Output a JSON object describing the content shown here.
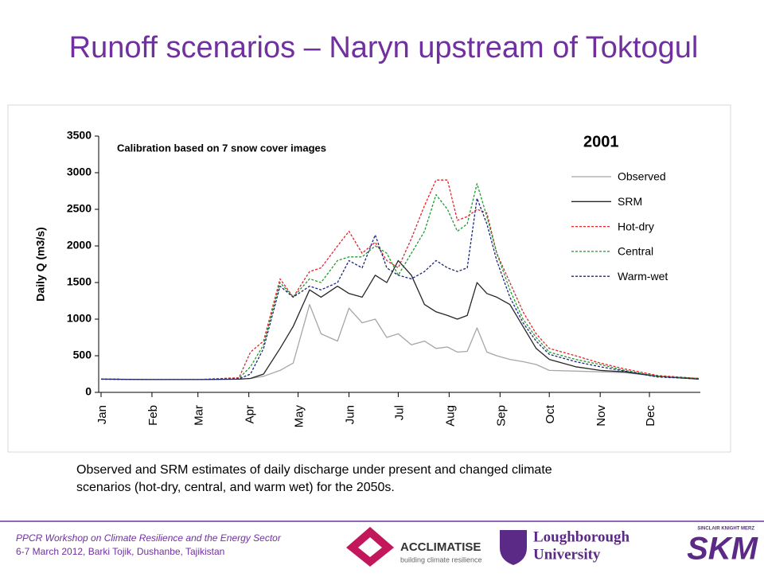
{
  "slide": {
    "title": "Runoff scenarios – Naryn upstream of Toktogul",
    "caption": [
      "Observed and SRM estimates of daily discharge under present and changed climate",
      "scenarios (hot-dry, central, and warm wet) for the 2050s."
    ],
    "footer": [
      "PPCR Workshop on Climate Resilience and the Energy Sector",
      "6-7 March 2012, Barki Tojik, Dushanbe, Tajikistan"
    ],
    "logos": {
      "acclimatise": "ACCLIMATISE",
      "acclimatise_tagline": "building climate resilience",
      "loughborough": [
        "Loughborough",
        "University"
      ],
      "skm_small": "SINCLAIR KNIGHT MERZ",
      "skm": "SKM"
    }
  },
  "chart_data": {
    "type": "line",
    "annotations": [
      "Calibration based on 7 snow cover images",
      "2001"
    ],
    "y_label": "Daily Q (m3/s)",
    "x": [
      1,
      32,
      60,
      85,
      92,
      100,
      110,
      118,
      128,
      135,
      145,
      152,
      160,
      168,
      175,
      182,
      190,
      198,
      205,
      212,
      218,
      224,
      230,
      236,
      242,
      250,
      258,
      266,
      274,
      290,
      305,
      320,
      340,
      365
    ],
    "series": [
      {
        "name": "Observed",
        "color": "#a6a6a6",
        "dash": false,
        "values": [
          180,
          175,
          175,
          180,
          190,
          220,
          300,
          400,
          1200,
          800,
          700,
          1150,
          950,
          1000,
          750,
          800,
          650,
          700,
          600,
          620,
          550,
          560,
          880,
          550,
          500,
          450,
          420,
          380,
          300,
          290,
          280,
          270,
          220,
          180
        ]
      },
      {
        "name": "SRM",
        "color": "#262626",
        "dash": false,
        "values": [
          180,
          175,
          175,
          180,
          190,
          250,
          600,
          900,
          1400,
          1300,
          1450,
          1350,
          1300,
          1600,
          1500,
          1800,
          1600,
          1200,
          1100,
          1050,
          1000,
          1050,
          1500,
          1350,
          1300,
          1200,
          900,
          600,
          450,
          350,
          300,
          280,
          220,
          180
        ]
      },
      {
        "name": "Hot-dry",
        "color": "#e8202a",
        "dash": true,
        "values": [
          180,
          175,
          175,
          200,
          550,
          700,
          1550,
          1300,
          1650,
          1700,
          2000,
          2200,
          1900,
          2050,
          1800,
          1700,
          2100,
          2550,
          2900,
          2900,
          2350,
          2400,
          2500,
          2450,
          1900,
          1500,
          1100,
          800,
          600,
          500,
          400,
          320,
          230,
          190
        ]
      },
      {
        "name": "Central",
        "color": "#1f9a2a",
        "dash": true,
        "values": [
          180,
          175,
          175,
          190,
          350,
          650,
          1500,
          1300,
          1550,
          1500,
          1800,
          1850,
          1850,
          2000,
          1900,
          1600,
          1900,
          2200,
          2700,
          2500,
          2200,
          2300,
          2850,
          2400,
          1900,
          1400,
          1000,
          750,
          550,
          450,
          380,
          300,
          220,
          190
        ]
      },
      {
        "name": "Warm-wet",
        "color": "#1a237e",
        "dash": true,
        "values": [
          180,
          175,
          175,
          185,
          250,
          600,
          1450,
          1300,
          1450,
          1400,
          1500,
          1800,
          1700,
          2150,
          1700,
          1600,
          1550,
          1650,
          1800,
          1700,
          1650,
          1700,
          2650,
          2300,
          1800,
          1300,
          950,
          700,
          520,
          420,
          350,
          290,
          210,
          185
        ]
      }
    ],
    "xlim": [
      1,
      366
    ],
    "xticks": [
      {
        "value": 1,
        "label": "Jan"
      },
      {
        "value": 32,
        "label": "Feb"
      },
      {
        "value": 60,
        "label": "Mar"
      },
      {
        "value": 91,
        "label": "Apr"
      },
      {
        "value": 121,
        "label": "May"
      },
      {
        "value": 152,
        "label": "Jun"
      },
      {
        "value": 182,
        "label": "Jul"
      },
      {
        "value": 213,
        "label": "Aug"
      },
      {
        "value": 244,
        "label": "Sep"
      },
      {
        "value": 274,
        "label": "Oct"
      },
      {
        "value": 305,
        "label": "Nov"
      },
      {
        "value": 335,
        "label": "Dec"
      }
    ],
    "ylim": [
      0,
      3500
    ],
    "yticks": [
      0,
      500,
      1000,
      1500,
      2000,
      2500,
      3000,
      3500
    ],
    "grid": false,
    "legend": "upper right"
  }
}
